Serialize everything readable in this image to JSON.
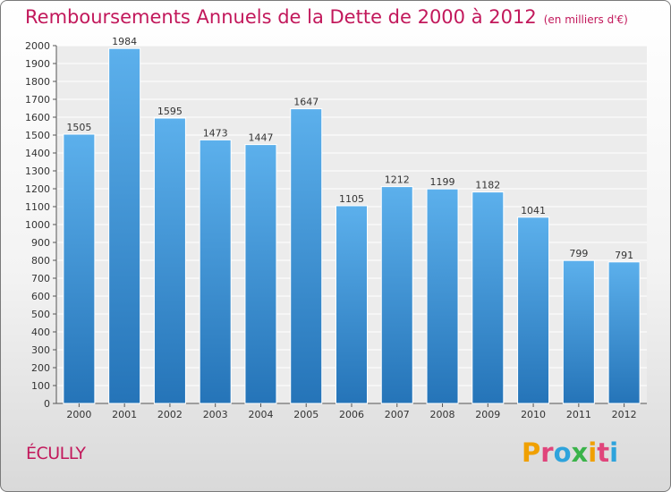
{
  "chart_data": {
    "type": "bar",
    "title": "Remboursements Annuels de la Dette de 2000 à 2012",
    "subtitle": "(en milliers d'€)",
    "categories": [
      "2000",
      "2001",
      "2002",
      "2003",
      "2004",
      "2005",
      "2006",
      "2007",
      "2008",
      "2009",
      "2010",
      "2011",
      "2012"
    ],
    "values": [
      1505,
      1984,
      1595,
      1473,
      1447,
      1647,
      1105,
      1212,
      1199,
      1182,
      1041,
      799,
      791
    ],
    "ylim": [
      0,
      2000
    ],
    "yticks": [
      0,
      100,
      200,
      300,
      400,
      500,
      600,
      700,
      800,
      900,
      1000,
      1100,
      1200,
      1300,
      1400,
      1500,
      1600,
      1700,
      1800,
      1900,
      2000
    ],
    "grid": true,
    "bar_color": "#3a8fd6",
    "xlabel": "",
    "ylabel": ""
  },
  "footer": {
    "commune": "ÉCULLY",
    "logo_letters": [
      "P",
      "r",
      "o",
      "x",
      "i",
      "t",
      "i"
    ],
    "logo_colors": [
      "#f0a000",
      "#e0457b",
      "#2ea3dc",
      "#3bb34a",
      "#f0a000",
      "#e0457b",
      "#2ea3dc"
    ]
  }
}
